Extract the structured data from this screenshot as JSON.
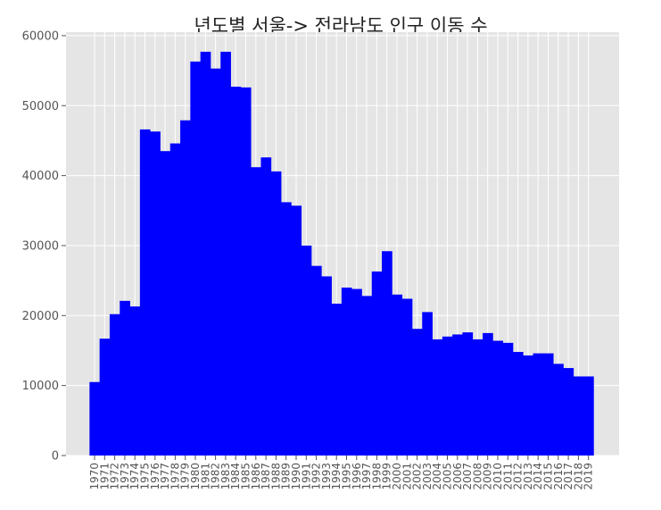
{
  "chart_data": {
    "type": "bar",
    "title": "년도별 서울-> 전라남도 인구 이동 수",
    "xlabel": "",
    "ylabel": "",
    "categories": [
      "1970",
      "1971",
      "1972",
      "1973",
      "1974",
      "1975",
      "1976",
      "1977",
      "1978",
      "1979",
      "1980",
      "1981",
      "1982",
      "1983",
      "1984",
      "1985",
      "1986",
      "1987",
      "1988",
      "1989",
      "1990",
      "1991",
      "1992",
      "1993",
      "1994",
      "1995",
      "1996",
      "1997",
      "1998",
      "1999",
      "2000",
      "2001",
      "2002",
      "2003",
      "2004",
      "2005",
      "2006",
      "2007",
      "2008",
      "2009",
      "2010",
      "2011",
      "2012",
      "2013",
      "2014",
      "2015",
      "2016",
      "2017",
      "2018",
      "2019"
    ],
    "values": [
      10500,
      16700,
      20200,
      22100,
      21300,
      46600,
      46300,
      43500,
      44600,
      47900,
      56300,
      57700,
      55300,
      57700,
      52700,
      52600,
      41200,
      42600,
      40600,
      36200,
      35700,
      30000,
      27100,
      25600,
      21700,
      24000,
      23800,
      22800,
      26300,
      29200,
      23000,
      22400,
      18100,
      20500,
      16600,
      17000,
      17300,
      17600,
      16600,
      17500,
      16400,
      16100,
      14800,
      14300,
      14600,
      14600,
      13100,
      12500,
      11300,
      11300
    ],
    "yticks": [
      "0",
      "10000",
      "20000",
      "30000",
      "40000",
      "50000",
      "60000"
    ],
    "ylim": [
      0,
      60500
    ],
    "grid": true,
    "colors": {
      "bar": "#0000ff",
      "background": "#e5e5e5",
      "grid": "#ffffff"
    }
  }
}
